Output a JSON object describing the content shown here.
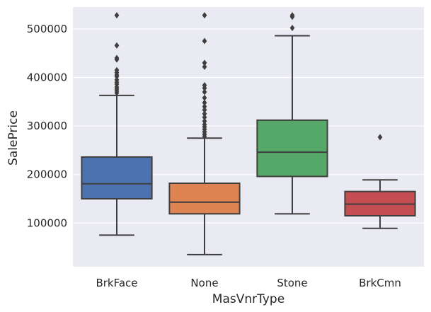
{
  "chart_data": {
    "type": "box",
    "xlabel": "MasVnrType",
    "ylabel": "SalePrice",
    "ylim": [
      10000,
      545000
    ],
    "yticks": [
      100000,
      200000,
      300000,
      400000,
      500000
    ],
    "grid": true,
    "categories": [
      "BrkFace",
      "None",
      "Stone",
      "BrkCmn"
    ],
    "colors": [
      "#4c72b0",
      "#dd8452",
      "#55a868",
      "#c44e52"
    ],
    "boxes": [
      {
        "category": "BrkFace",
        "q1": 150000,
        "median": 181000,
        "q3": 236000,
        "whisker_low": 75000,
        "whisker_high": 363000,
        "outliers": [
          528000,
          466000,
          440000,
          437000,
          415000,
          410000,
          405000,
          402000,
          395000,
          390000,
          386000,
          380000,
          376000,
          372000,
          368000
        ]
      },
      {
        "category": "None",
        "q1": 119000,
        "median": 143000,
        "q3": 182000,
        "whisker_low": 35000,
        "whisker_high": 275000,
        "outliers": [
          528000,
          475000,
          430000,
          422000,
          384000,
          378000,
          370000,
          358000,
          348000,
          340000,
          333000,
          325000,
          318000,
          310000,
          303000,
          298000,
          293000,
          288000,
          283000,
          279000
        ]
      },
      {
        "category": "Stone",
        "q1": 196000,
        "median": 246000,
        "q3": 312000,
        "whisker_low": 119000,
        "whisker_high": 486000,
        "outliers": [
          528000,
          525000,
          502000
        ]
      },
      {
        "category": "BrkCmn",
        "q1": 115000,
        "median": 139000,
        "q3": 165000,
        "whisker_low": 89000,
        "whisker_high": 189000,
        "outliers": [
          277000
        ]
      }
    ]
  }
}
